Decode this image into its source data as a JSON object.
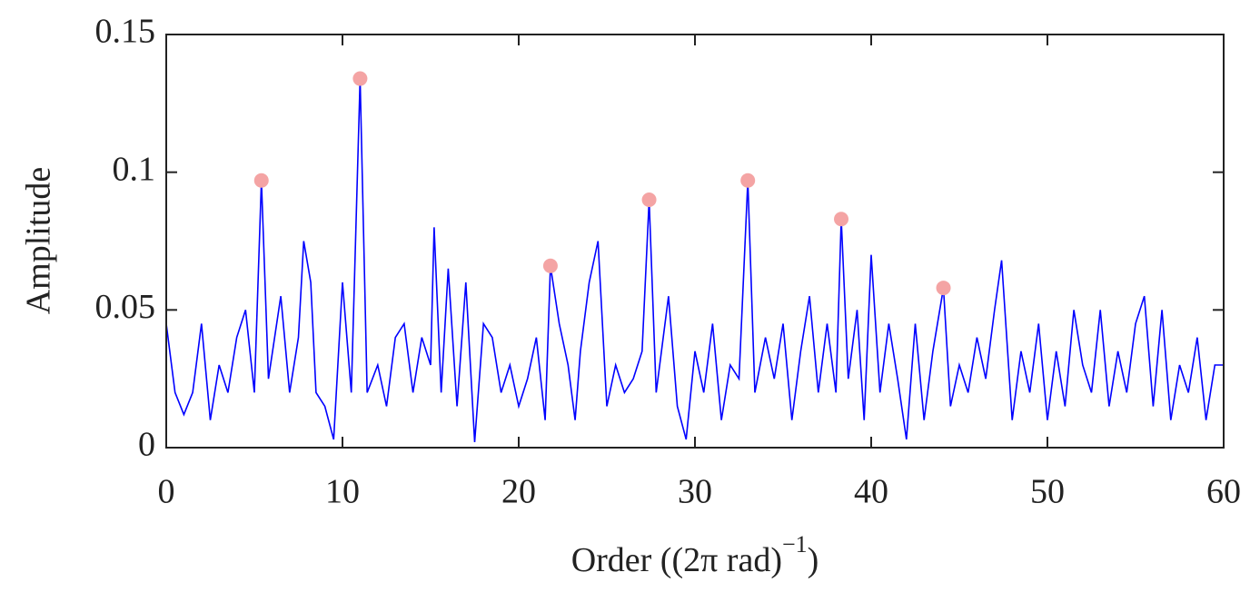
{
  "chart_data": {
    "type": "line",
    "y_label": "Amplitude",
    "x_label": {
      "text": "Order ((2π rad)",
      "superscript": "−1",
      "suffix": ")"
    },
    "xlim": [
      0,
      60
    ],
    "xticks": [
      0,
      10,
      20,
      30,
      40,
      50,
      60
    ],
    "ylim": [
      0,
      0.15
    ],
    "yticks": [
      0,
      0.05,
      0.1,
      0.15
    ],
    "series": [
      {
        "type": "line",
        "color": "#0000ff",
        "x": [
          0,
          0.5,
          1,
          1.5,
          2,
          2.5,
          3,
          3.5,
          4,
          4.5,
          5,
          5.4,
          5.8,
          6.5,
          7,
          7.5,
          7.8,
          8.2,
          8.5,
          9,
          9.5,
          10,
          10.5,
          11.0,
          11.4,
          12,
          12.5,
          13,
          13.5,
          14,
          14.5,
          15,
          15.2,
          15.6,
          16,
          16.5,
          17,
          17.5,
          18,
          18.5,
          19,
          19.5,
          20,
          20.5,
          21,
          21.5,
          21.8,
          22.3,
          22.8,
          23.2,
          23.5,
          24,
          24.5,
          25,
          25.5,
          26,
          26.5,
          27,
          27.4,
          27.8,
          28.5,
          29,
          29.5,
          30,
          30.5,
          31,
          31.5,
          32,
          32.5,
          33.0,
          33.4,
          34,
          34.5,
          35,
          35.5,
          36,
          36.5,
          37,
          37.5,
          38,
          38.3,
          38.7,
          39.2,
          39.6,
          40,
          40.5,
          41,
          41.5,
          42,
          42.5,
          43,
          43.5,
          44.1,
          44.5,
          45,
          45.5,
          46,
          46.5,
          47,
          47.4,
          48,
          48.5,
          49,
          49.5,
          50,
          50.5,
          51,
          51.5,
          52,
          52.5,
          53,
          53.5,
          54,
          54.5,
          55,
          55.5,
          56,
          56.5,
          57,
          57.5,
          58,
          58.5,
          59,
          59.5,
          60
        ],
        "values": [
          0.045,
          0.02,
          0.012,
          0.02,
          0.045,
          0.01,
          0.03,
          0.02,
          0.04,
          0.05,
          0.02,
          0.097,
          0.025,
          0.055,
          0.02,
          0.04,
          0.075,
          0.06,
          0.02,
          0.015,
          0.003,
          0.06,
          0.02,
          0.134,
          0.02,
          0.03,
          0.015,
          0.04,
          0.045,
          0.02,
          0.04,
          0.03,
          0.08,
          0.02,
          0.065,
          0.015,
          0.06,
          0.002,
          0.045,
          0.04,
          0.02,
          0.03,
          0.015,
          0.025,
          0.04,
          0.01,
          0.066,
          0.045,
          0.03,
          0.01,
          0.035,
          0.06,
          0.075,
          0.015,
          0.03,
          0.02,
          0.025,
          0.035,
          0.09,
          0.02,
          0.055,
          0.015,
          0.003,
          0.035,
          0.02,
          0.045,
          0.01,
          0.03,
          0.025,
          0.097,
          0.02,
          0.04,
          0.025,
          0.045,
          0.01,
          0.035,
          0.055,
          0.02,
          0.045,
          0.02,
          0.083,
          0.025,
          0.05,
          0.01,
          0.07,
          0.02,
          0.045,
          0.025,
          0.003,
          0.045,
          0.01,
          0.035,
          0.058,
          0.015,
          0.03,
          0.02,
          0.04,
          0.025,
          0.05,
          0.068,
          0.01,
          0.035,
          0.02,
          0.045,
          0.01,
          0.035,
          0.015,
          0.05,
          0.03,
          0.02,
          0.05,
          0.015,
          0.035,
          0.02,
          0.045,
          0.055,
          0.015,
          0.05,
          0.01,
          0.03,
          0.02,
          0.04,
          0.01,
          0.03,
          0.03
        ]
      },
      {
        "type": "scatter",
        "color": "#f4a4a4",
        "x": [
          5.4,
          11.0,
          21.8,
          27.4,
          33.0,
          38.3,
          44.1
        ],
        "values": [
          0.097,
          0.134,
          0.066,
          0.09,
          0.097,
          0.083,
          0.058
        ]
      }
    ]
  }
}
